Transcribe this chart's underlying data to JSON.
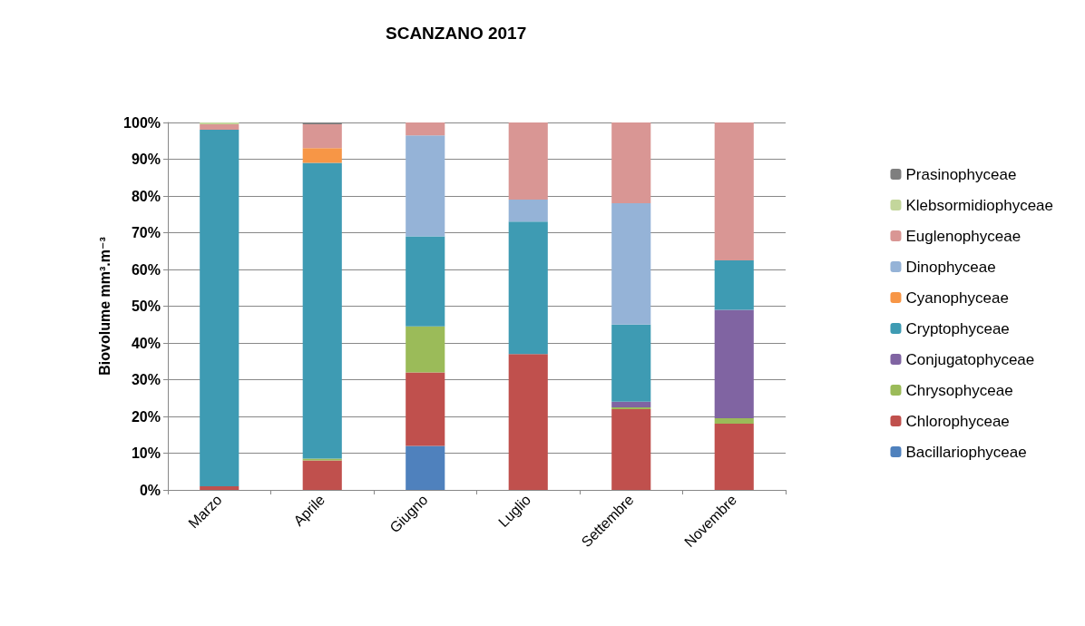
{
  "chart_data": {
    "type": "bar",
    "stacked": true,
    "title": "SCANZANO 2017",
    "ylabel": "Biovolume mm³.m⁻³",
    "categories": [
      "Marzo",
      "Aprile",
      "Giugno",
      "Luglio",
      "Settembre",
      "Novembre"
    ],
    "series": [
      {
        "name": "Bacillariophyceae",
        "color": "#4f81bd",
        "values": [
          0,
          0,
          12,
          0,
          0,
          0
        ]
      },
      {
        "name": "Chlorophyceae",
        "color": "#c0504d",
        "values": [
          1,
          8,
          20,
          37,
          22,
          18
        ]
      },
      {
        "name": "Chrysophyceae",
        "color": "#9bbb59",
        "values": [
          0,
          0.5,
          12.5,
          0,
          0.5,
          1.5
        ]
      },
      {
        "name": "Conjugatophyceae",
        "color": "#8064a2",
        "values": [
          0,
          0,
          0,
          0,
          1.5,
          29.5
        ]
      },
      {
        "name": "Cryptophyceae",
        "color": "#3e9bb3",
        "values": [
          97,
          80.5,
          24.5,
          36,
          21,
          13.5
        ]
      },
      {
        "name": "Cyanophyceae",
        "color": "#f79646",
        "values": [
          0,
          4,
          0,
          0,
          0,
          0
        ]
      },
      {
        "name": "Dinophyceae",
        "color": "#95b3d7",
        "values": [
          0,
          0,
          27.5,
          6,
          33,
          0
        ]
      },
      {
        "name": "Euglenophyceae",
        "color": "#d99694",
        "values": [
          1.5,
          6.5,
          3.5,
          21,
          22,
          37.5
        ]
      },
      {
        "name": "Klebsormidiophyceae",
        "color": "#c3d69b",
        "values": [
          0.5,
          0,
          0,
          0,
          0,
          0
        ]
      },
      {
        "name": "Prasinophyceae",
        "color": "#7f7f7f",
        "values": [
          0,
          0.5,
          0,
          0,
          0,
          0
        ]
      }
    ],
    "ylim": [
      0,
      100
    ],
    "yticks": [
      {
        "value": 0,
        "label": "0%"
      },
      {
        "value": 10,
        "label": "10%"
      },
      {
        "value": 20,
        "label": "20%"
      },
      {
        "value": 30,
        "label": "30%"
      },
      {
        "value": 40,
        "label": "40%"
      },
      {
        "value": 50,
        "label": "50%"
      },
      {
        "value": 60,
        "label": "60%"
      },
      {
        "value": 70,
        "label": "70%"
      },
      {
        "value": 80,
        "label": "80%"
      },
      {
        "value": 90,
        "label": "90%"
      },
      {
        "value": 100,
        "label": "100%"
      }
    ],
    "grid": "y",
    "legend": "right"
  }
}
